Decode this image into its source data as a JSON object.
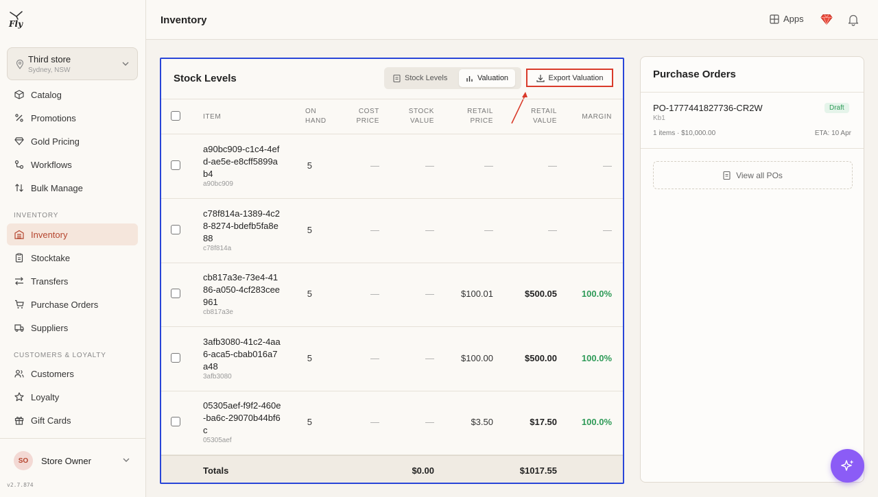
{
  "app": {
    "logo_text": "Fly",
    "version": "v2.7.874"
  },
  "store": {
    "name": "Third store",
    "location": "Sydney, NSW"
  },
  "sidebar": {
    "items": [
      {
        "label": "Catalog",
        "icon": "box-icon"
      },
      {
        "label": "Promotions",
        "icon": "percent-icon"
      },
      {
        "label": "Gold Pricing",
        "icon": "diamond-icon"
      },
      {
        "label": "Workflows",
        "icon": "workflow-icon"
      },
      {
        "label": "Bulk Manage",
        "icon": "sort-arrows-icon"
      }
    ],
    "inventory_section": "INVENTORY",
    "inventory_items": [
      {
        "label": "Inventory",
        "icon": "warehouse-icon",
        "active": true
      },
      {
        "label": "Stocktake",
        "icon": "clipboard-icon"
      },
      {
        "label": "Transfers",
        "icon": "transfer-icon"
      },
      {
        "label": "Purchase Orders",
        "icon": "cart-icon"
      },
      {
        "label": "Suppliers",
        "icon": "truck-icon"
      }
    ],
    "customers_section": "CUSTOMERS & LOYALTY",
    "customer_items": [
      {
        "label": "Customers",
        "icon": "users-icon"
      },
      {
        "label": "Loyalty",
        "icon": "star-icon"
      },
      {
        "label": "Gift Cards",
        "icon": "gift-icon"
      }
    ]
  },
  "user": {
    "initials": "SO",
    "name": "Store Owner"
  },
  "header": {
    "title": "Inventory",
    "apps_label": "Apps"
  },
  "stock": {
    "title": "Stock Levels",
    "tab_stock_levels": "Stock Levels",
    "tab_valuation": "Valuation",
    "active_tab": "Valuation",
    "export_label": "Export Valuation",
    "columns": {
      "item": "ITEM",
      "on_hand_1": "ON",
      "on_hand_2": "HAND",
      "cost_1": "COST",
      "cost_2": "PRICE",
      "stock_value_1": "STOCK",
      "stock_value_2": "VALUE",
      "retail_price_1": "RETAIL",
      "retail_price_2": "PRICE",
      "retail_value_1": "RETAIL",
      "retail_value_2": "VALUE",
      "margin": "MARGIN"
    },
    "rows": [
      {
        "name": "a90bc909-c1c4-4efd-ae5e-e8cff5899ab4",
        "sku": "a90bc909",
        "on_hand": "5",
        "cost_price": "—",
        "stock_value": "—",
        "retail_price": "—",
        "retail_value": "—",
        "margin": "—"
      },
      {
        "name": "c78f814a-1389-4c28-8274-bdefb5fa8e88",
        "sku": "c78f814a",
        "on_hand": "5",
        "cost_price": "—",
        "stock_value": "—",
        "retail_price": "—",
        "retail_value": "—",
        "margin": "—"
      },
      {
        "name": "cb817a3e-73e4-4186-a050-4cf283cee961",
        "sku": "cb817a3e",
        "on_hand": "5",
        "cost_price": "—",
        "stock_value": "—",
        "retail_price": "$100.01",
        "retail_value": "$500.05",
        "margin": "100.0%"
      },
      {
        "name": "3afb3080-41c2-4aa6-aca5-cbab016a7a48",
        "sku": "3afb3080",
        "on_hand": "5",
        "cost_price": "—",
        "stock_value": "—",
        "retail_price": "$100.00",
        "retail_value": "$500.00",
        "margin": "100.0%"
      },
      {
        "name": "05305aef-f9f2-460e-ba6c-29070b44bf6c",
        "sku": "05305aef",
        "on_hand": "5",
        "cost_price": "—",
        "stock_value": "—",
        "retail_price": "$3.50",
        "retail_value": "$17.50",
        "margin": "100.0%"
      }
    ],
    "totals": {
      "label": "Totals",
      "stock_value": "$0.00",
      "retail_value": "$1017.55"
    }
  },
  "purchase_orders": {
    "title": "Purchase Orders",
    "po": {
      "number": "PO-1777441827736-CR2W",
      "status": "Draft",
      "supplier": "Kb1",
      "meta": "1 items · $10,000.00",
      "eta": "ETA: 10 Apr"
    },
    "view_all_label": "View all POs"
  },
  "colors": {
    "accent": "#b5452e",
    "highlight_border": "#2845d8",
    "export_border": "#d93a2a",
    "positive": "#2e9a57",
    "fab": "#8b5cf6"
  }
}
